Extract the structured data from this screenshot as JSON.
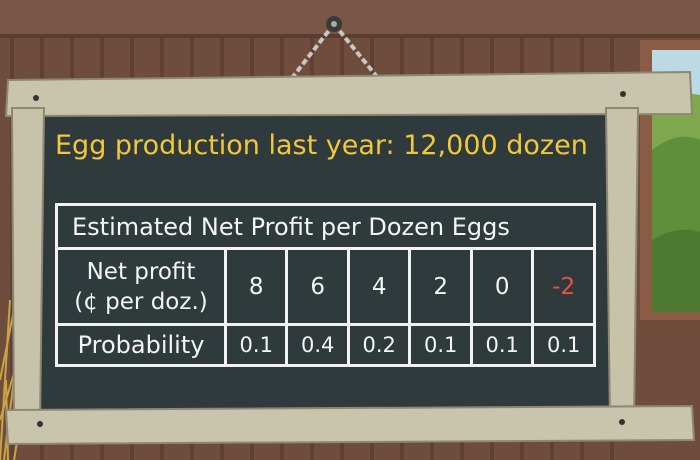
{
  "headline": "Egg production last year: 12,000 dozen",
  "table": {
    "title": "Estimated Net Profit per Dozen Eggs",
    "profit_label_line1": "Net profit",
    "profit_label_line2": "(¢ per doz.)",
    "profits": [
      "8",
      "6",
      "4",
      "2",
      "0",
      "-2"
    ],
    "probability_label": "Probability",
    "probabilities": [
      "0.1",
      "0.4",
      "0.2",
      "0.1",
      "0.1",
      "0.1"
    ]
  },
  "colors": {
    "chalkboard": "#2f3a3c",
    "headline": "#f3c73a",
    "negative": "#e8533c",
    "frame": "#c9c4ac",
    "wall": "#6b4a3a"
  }
}
